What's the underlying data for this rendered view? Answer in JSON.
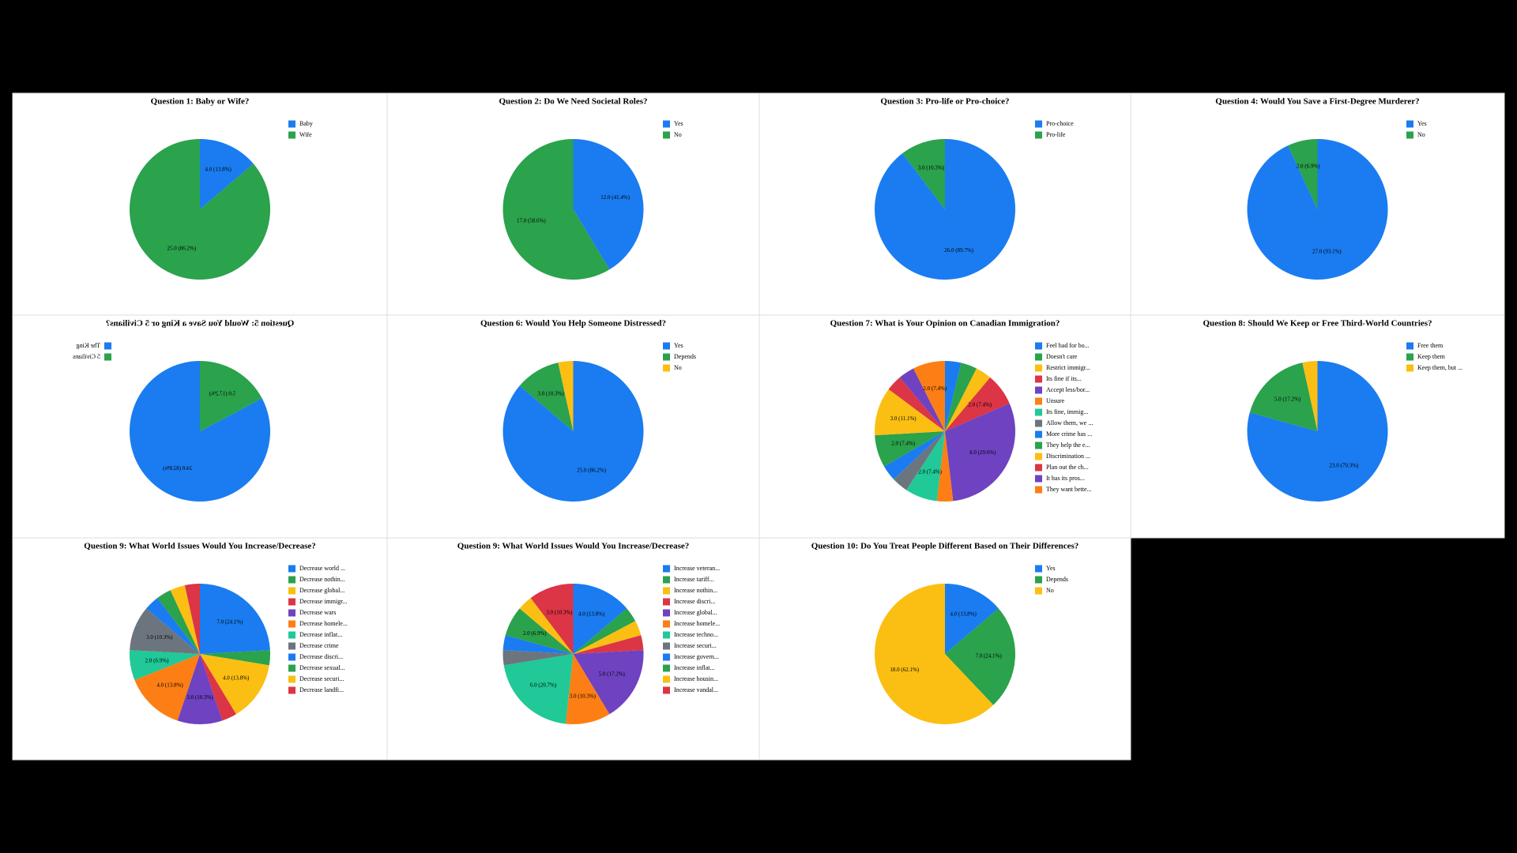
{
  "palette": [
    "#1a7cf0",
    "#2ba24c",
    "#fbbf13",
    "#dc3545",
    "#6f42c1",
    "#fd7e14",
    "#20c997",
    "#6c757d"
  ],
  "chart_data": [
    {
      "type": "pie",
      "title": "Question 1: Baby or Wife?",
      "categories": [
        "Baby",
        "Wife"
      ],
      "values": [
        4,
        25
      ],
      "value_labels": [
        "4.0 (13.8%)",
        "25.0 (86.2%)"
      ]
    },
    {
      "type": "pie",
      "title": "Question 2: Do We Need Societal Roles?",
      "categories": [
        "Yes",
        "No"
      ],
      "values": [
        12,
        17
      ],
      "value_labels": [
        "12.0 (41.4%)",
        "17.0 (58.6%)"
      ]
    },
    {
      "type": "pie",
      "title": "Question 3: Pro-life or Pro-choice?",
      "categories": [
        "Pro-choice",
        "Pro-life"
      ],
      "values": [
        26,
        3
      ],
      "value_labels": [
        "26.0 (89.7%)",
        "3.0 (10.3%)"
      ]
    },
    {
      "type": "pie",
      "title": "Question 4: Would You Save a First-Degree Murderer?",
      "categories": [
        "Yes",
        "No"
      ],
      "values": [
        27,
        2
      ],
      "value_labels": [
        "27.0 (93.1%)",
        "2.0 (6.9%)"
      ]
    },
    {
      "type": "pie",
      "title": "Question 5: Would You Save a King or 5 Civilians?",
      "mirrored": true,
      "categories": [
        "The King",
        "5 Civilians"
      ],
      "values": [
        24,
        5
      ],
      "value_labels": [
        "24.0 (82.8%)",
        "5.0 (17.2%)"
      ]
    },
    {
      "type": "pie",
      "title": "Question 6: Would You Help Someone Distressed?",
      "categories": [
        "Yes",
        "Depends",
        "No"
      ],
      "values": [
        25,
        3,
        1
      ],
      "value_labels": [
        "25.0 (86.2%)",
        "3.0 (10.3%)",
        null
      ]
    },
    {
      "type": "pie",
      "title": "Question 7: What is Your Opinion on Canadian Immigration?",
      "categories": [
        "Feel bad for bo...",
        "Doesn't care",
        "Restrict immigr...",
        "Its fine if its...",
        "Accept less/bor...",
        "Unsure",
        "Its fine, immig...",
        "Allow them, we ...",
        "More crime has ...",
        "They help the e...",
        "Discrimination ...",
        "Plan out the ch...",
        "It has its pros...",
        "They want bette..."
      ],
      "values": [
        1,
        1,
        1,
        2,
        8,
        1,
        2,
        1,
        1,
        2,
        3,
        1,
        1,
        2
      ],
      "value_labels": [
        null,
        null,
        null,
        "2.0 (7.4%)",
        "8.0 (29.6%)",
        null,
        "2.0 (7.4%)",
        null,
        null,
        "2.0 (7.4%)",
        "3.0 (11.1%)",
        null,
        null,
        "2.0 (7.4%)"
      ]
    },
    {
      "type": "pie",
      "title": "Question 8: Should We Keep or Free Third-World Countries?",
      "categories": [
        "Free them",
        "Keep them",
        "Keep them, but ..."
      ],
      "values": [
        23,
        5,
        1
      ],
      "value_labels": [
        "23.0 (79.3%)",
        "5.0 (17.2%)",
        null
      ]
    },
    {
      "type": "pie",
      "title": "Question 9: What World Issues Would You Increase/Decrease?",
      "categories": [
        "Decrease world ...",
        "Decrease nothin...",
        "Decrease global...",
        "Decrease immigr...",
        "Decrease wars",
        "Decrease homele...",
        "Decrease inflat...",
        "Decrease crime",
        "Decrease discri...",
        "Decrease sexual...",
        "Decrease securi...",
        "Decrease landfi..."
      ],
      "values": [
        7,
        1,
        4,
        1,
        3,
        4,
        2,
        3,
        1,
        1,
        1,
        1
      ],
      "value_labels": [
        "7.0 (24.1%)",
        null,
        "4.0 (13.8%)",
        null,
        "3.0 (10.3%)",
        "4.0 (13.8%)",
        "2.0 (6.9%)",
        "3.0 (10.3%)",
        null,
        null,
        null,
        null
      ]
    },
    {
      "type": "pie",
      "title": "Question 9: What World Issues Would You Increase/Decrease?",
      "categories": [
        "Increase veteran...",
        "Increase tariff...",
        "Increase nothin...",
        "Increase discri...",
        "Increase global...",
        "Increase homele...",
        "Increase techno...",
        "Increase securi...",
        "Increase govern...",
        "Increase inflat...",
        "Increase housin...",
        "Increase vandal..."
      ],
      "values": [
        4,
        1,
        1,
        1,
        5,
        3,
        6,
        1,
        1,
        2,
        1,
        3
      ],
      "value_labels": [
        "4.0 (13.8%)",
        null,
        null,
        null,
        "5.0 (17.2%)",
        "3.0 (10.3%)",
        "6.0 (20.7%)",
        null,
        null,
        "2.0 (6.9%)",
        null,
        "3.0 (10.3%)"
      ]
    },
    {
      "type": "pie",
      "title": "Question 10: Do You Treat People Different Based on Their Differences?",
      "categories": [
        "Yes",
        "Depends",
        "No"
      ],
      "values": [
        4,
        7,
        18
      ],
      "value_labels": [
        "4.0 (13.8%)",
        "7.0 (24.1%)",
        "18.0 (62.1%)"
      ]
    }
  ]
}
